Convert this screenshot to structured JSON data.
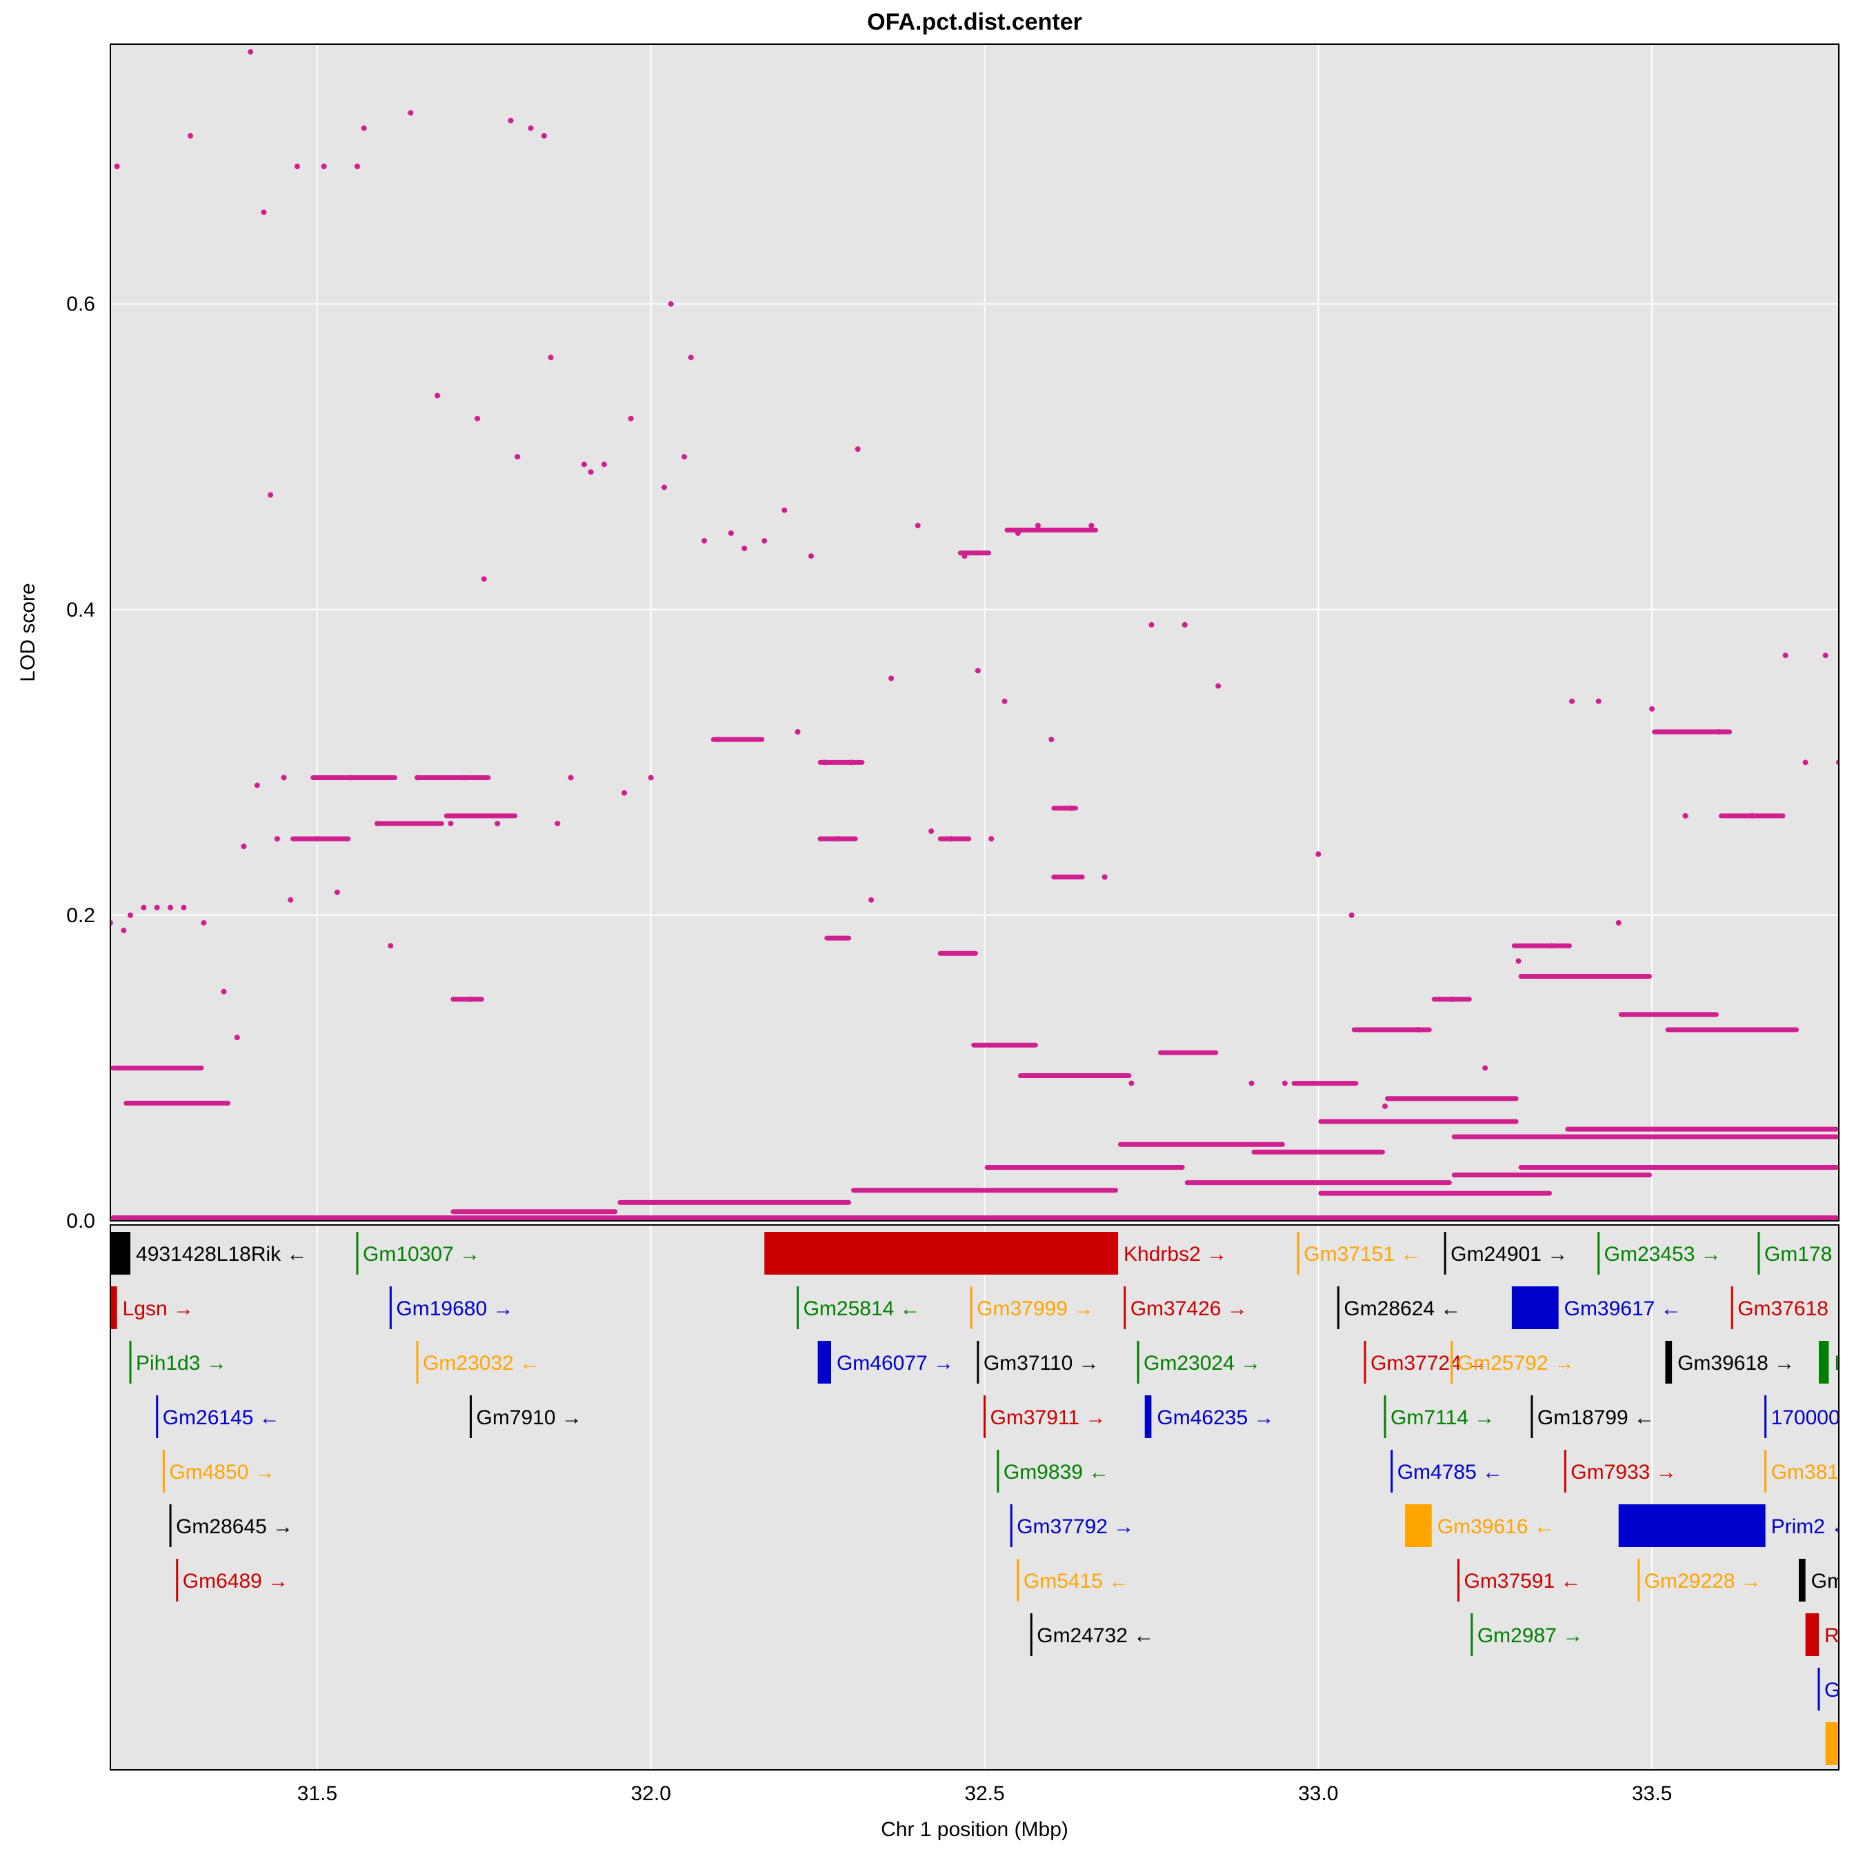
{
  "chart_data": {
    "type": "scatter",
    "title": "OFA.pct.dist.center",
    "xlabel": "Chr 1 position (Mbp)",
    "ylabel": "LOD score",
    "xlim": [
      31.19,
      33.78
    ],
    "ylim": [
      0.0,
      0.77
    ],
    "xticks": [
      "31.5",
      "32.0",
      "32.5",
      "33.0",
      "33.5"
    ],
    "yticks": [
      "0.0",
      "0.2",
      "0.4",
      "0.6"
    ],
    "grid": true,
    "point_color": "#d02090",
    "panel_bg": "#e5e5e5",
    "lod_points": [
      [
        31.19,
        0.195
      ],
      [
        31.2,
        0.69
      ],
      [
        31.21,
        0.19
      ],
      [
        31.22,
        0.2
      ],
      [
        31.24,
        0.205
      ],
      [
        31.26,
        0.205
      ],
      [
        31.28,
        0.205
      ],
      [
        31.3,
        0.205
      ],
      [
        31.33,
        0.195
      ],
      [
        31.31,
        0.71
      ],
      [
        31.36,
        0.15
      ],
      [
        31.38,
        0.12
      ],
      [
        31.39,
        0.245
      ],
      [
        31.4,
        0.765
      ],
      [
        31.41,
        0.285
      ],
      [
        31.42,
        0.66
      ],
      [
        31.43,
        0.475
      ],
      [
        31.44,
        0.25
      ],
      [
        31.45,
        0.29
      ],
      [
        31.46,
        0.21
      ],
      [
        31.47,
        0.69
      ],
      [
        31.5,
        0.25
      ],
      [
        31.51,
        0.69
      ],
      [
        31.53,
        0.215
      ],
      [
        31.55,
        0.29
      ],
      [
        31.56,
        0.69
      ],
      [
        31.57,
        0.715
      ],
      [
        31.59,
        0.26
      ],
      [
        31.61,
        0.18
      ],
      [
        31.64,
        0.725
      ],
      [
        31.65,
        0.29
      ],
      [
        31.68,
        0.54
      ],
      [
        31.7,
        0.26
      ],
      [
        31.72,
        0.29
      ],
      [
        31.73,
        0.145
      ],
      [
        31.74,
        0.525
      ],
      [
        31.75,
        0.42
      ],
      [
        31.77,
        0.26
      ],
      [
        31.79,
        0.72
      ],
      [
        31.8,
        0.5
      ],
      [
        31.82,
        0.715
      ],
      [
        31.84,
        0.71
      ],
      [
        31.85,
        0.565
      ],
      [
        31.86,
        0.26
      ],
      [
        31.88,
        0.29
      ],
      [
        31.9,
        0.495
      ],
      [
        31.91,
        0.49
      ],
      [
        31.93,
        0.495
      ],
      [
        31.96,
        0.28
      ],
      [
        31.97,
        0.525
      ],
      [
        32.0,
        0.29
      ],
      [
        32.02,
        0.48
      ],
      [
        32.03,
        0.6
      ],
      [
        32.05,
        0.5
      ],
      [
        32.06,
        0.565
      ],
      [
        32.08,
        0.445
      ],
      [
        32.1,
        0.315
      ],
      [
        32.12,
        0.45
      ],
      [
        32.14,
        0.44
      ],
      [
        32.17,
        0.445
      ],
      [
        32.2,
        0.465
      ],
      [
        32.22,
        0.32
      ],
      [
        32.24,
        0.435
      ],
      [
        32.26,
        0.3
      ],
      [
        32.28,
        0.25
      ],
      [
        32.3,
        0.3
      ],
      [
        32.31,
        0.505
      ],
      [
        32.33,
        0.21
      ],
      [
        32.36,
        0.355
      ],
      [
        32.4,
        0.455
      ],
      [
        32.42,
        0.255
      ],
      [
        32.45,
        0.25
      ],
      [
        32.47,
        0.435
      ],
      [
        32.49,
        0.36
      ],
      [
        32.51,
        0.25
      ],
      [
        32.53,
        0.34
      ],
      [
        32.55,
        0.45
      ],
      [
        32.58,
        0.455
      ],
      [
        32.6,
        0.315
      ],
      [
        32.63,
        0.27
      ],
      [
        32.66,
        0.455
      ],
      [
        32.68,
        0.225
      ],
      [
        32.72,
        0.09
      ],
      [
        32.75,
        0.39
      ],
      [
        32.8,
        0.39
      ],
      [
        32.85,
        0.35
      ],
      [
        32.9,
        0.09
      ],
      [
        32.95,
        0.09
      ],
      [
        33.0,
        0.24
      ],
      [
        33.05,
        0.2
      ],
      [
        33.1,
        0.075
      ],
      [
        33.15,
        0.125
      ],
      [
        33.2,
        0.145
      ],
      [
        33.25,
        0.1
      ],
      [
        33.3,
        0.17
      ],
      [
        33.35,
        0.18
      ],
      [
        33.38,
        0.34
      ],
      [
        33.42,
        0.34
      ],
      [
        33.45,
        0.195
      ],
      [
        33.5,
        0.335
      ],
      [
        33.55,
        0.265
      ],
      [
        33.6,
        0.32
      ],
      [
        33.65,
        0.265
      ],
      [
        33.7,
        0.37
      ],
      [
        33.73,
        0.3
      ],
      [
        33.76,
        0.37
      ],
      [
        33.78,
        0.3
      ]
    ],
    "lod_bands": [
      {
        "x1": 31.19,
        "x2": 31.33,
        "y": 0.1
      },
      {
        "x1": 31.21,
        "x2": 31.37,
        "y": 0.077
      },
      {
        "x1": 31.46,
        "x2": 31.55,
        "y": 0.25
      },
      {
        "x1": 31.49,
        "x2": 31.62,
        "y": 0.29
      },
      {
        "x1": 31.59,
        "x2": 31.69,
        "y": 0.26
      },
      {
        "x1": 31.65,
        "x2": 31.76,
        "y": 0.29
      },
      {
        "x1": 31.69,
        "x2": 31.8,
        "y": 0.265
      },
      {
        "x1": 31.7,
        "x2": 31.75,
        "y": 0.145
      },
      {
        "x1": 32.09,
        "x2": 32.17,
        "y": 0.315
      },
      {
        "x1": 32.25,
        "x2": 32.32,
        "y": 0.3
      },
      {
        "x1": 32.25,
        "x2": 32.31,
        "y": 0.25
      },
      {
        "x1": 32.26,
        "x2": 32.3,
        "y": 0.185
      },
      {
        "x1": 32.43,
        "x2": 32.48,
        "y": 0.25
      },
      {
        "x1": 32.43,
        "x2": 32.49,
        "y": 0.175
      },
      {
        "x1": 32.46,
        "x2": 32.51,
        "y": 0.437
      },
      {
        "x1": 32.53,
        "x2": 32.67,
        "y": 0.452
      },
      {
        "x1": 32.6,
        "x2": 32.65,
        "y": 0.225
      },
      {
        "x1": 32.6,
        "x2": 32.64,
        "y": 0.27
      },
      {
        "x1": 32.48,
        "x2": 32.58,
        "y": 0.115
      },
      {
        "x1": 32.55,
        "x2": 32.72,
        "y": 0.095
      },
      {
        "x1": 32.76,
        "x2": 32.85,
        "y": 0.11
      },
      {
        "x1": 32.96,
        "x2": 33.06,
        "y": 0.09
      },
      {
        "x1": 33.05,
        "x2": 33.17,
        "y": 0.125
      },
      {
        "x1": 33.17,
        "x2": 33.23,
        "y": 0.145
      },
      {
        "x1": 33.29,
        "x2": 33.38,
        "y": 0.18
      },
      {
        "x1": 33.2,
        "x2": 33.78,
        "y": 0.055
      },
      {
        "x1": 33.37,
        "x2": 33.78,
        "y": 0.06
      },
      {
        "x1": 33.3,
        "x2": 33.78,
        "y": 0.035
      },
      {
        "x1": 33.5,
        "x2": 33.62,
        "y": 0.32
      },
      {
        "x1": 33.6,
        "x2": 33.7,
        "y": 0.265
      },
      {
        "x1": 33.3,
        "x2": 33.5,
        "y": 0.16
      },
      {
        "x1": 33.45,
        "x2": 33.6,
        "y": 0.135
      },
      {
        "x1": 33.52,
        "x2": 33.72,
        "y": 0.125
      },
      {
        "x1": 31.19,
        "x2": 33.78,
        "y": 0.002
      },
      {
        "x1": 31.7,
        "x2": 31.95,
        "y": 0.006
      },
      {
        "x1": 31.95,
        "x2": 32.3,
        "y": 0.012
      },
      {
        "x1": 32.3,
        "x2": 32.7,
        "y": 0.02
      },
      {
        "x1": 32.5,
        "x2": 32.8,
        "y": 0.035
      },
      {
        "x1": 32.8,
        "x2": 33.2,
        "y": 0.025
      },
      {
        "x1": 33.0,
        "x2": 33.35,
        "y": 0.018
      },
      {
        "x1": 33.2,
        "x2": 33.5,
        "y": 0.03
      },
      {
        "x1": 33.0,
        "x2": 33.3,
        "y": 0.065
      },
      {
        "x1": 32.9,
        "x2": 33.1,
        "y": 0.045
      },
      {
        "x1": 33.1,
        "x2": 33.3,
        "y": 0.08
      },
      {
        "x1": 32.7,
        "x2": 32.95,
        "y": 0.05
      }
    ],
    "genes": [
      {
        "label": "4931428L18Rik ←",
        "start": 31.19,
        "end": 31.22,
        "row": 0,
        "color": "#000000"
      },
      {
        "label": "Gm10307 →",
        "start": 31.56,
        "end": 31.56,
        "row": 0,
        "color": "#008000"
      },
      {
        "label": "Khdrbs2 →",
        "start": 32.17,
        "end": 32.7,
        "row": 0,
        "color": "#cc0000"
      },
      {
        "label": "Gm37151 ←",
        "start": 32.97,
        "end": 32.97,
        "row": 0,
        "color": "#ffa500"
      },
      {
        "label": "Gm24901 →",
        "start": 33.19,
        "end": 33.19,
        "row": 0,
        "color": "#000000"
      },
      {
        "label": "Gm23453 →",
        "start": 33.42,
        "end": 33.42,
        "row": 0,
        "color": "#008000"
      },
      {
        "label": "Gm178",
        "start": 33.66,
        "end": 33.66,
        "row": 0,
        "color": "#008000"
      },
      {
        "label": "Lgsn →",
        "start": 31.19,
        "end": 31.2,
        "row": 1,
        "color": "#cc0000"
      },
      {
        "label": "Gm19680 →",
        "start": 31.61,
        "end": 31.61,
        "row": 1,
        "color": "#0000cc"
      },
      {
        "label": "Gm25814 ←",
        "start": 32.22,
        "end": 32.22,
        "row": 1,
        "color": "#008000"
      },
      {
        "label": "Gm37999 →",
        "start": 32.48,
        "end": 32.48,
        "row": 1,
        "color": "#ffa500"
      },
      {
        "label": "Gm37426 →",
        "start": 32.71,
        "end": 32.71,
        "row": 1,
        "color": "#cc0000"
      },
      {
        "label": "Gm28624 ←",
        "start": 33.03,
        "end": 33.03,
        "row": 1,
        "color": "#000000"
      },
      {
        "label": "Gm39617 ←",
        "start": 33.29,
        "end": 33.36,
        "row": 1,
        "color": "#0000cc"
      },
      {
        "label": "Gm37618",
        "start": 33.62,
        "end": 33.62,
        "row": 1,
        "color": "#cc0000"
      },
      {
        "label": "Pih1d3 →",
        "start": 31.22,
        "end": 31.22,
        "row": 2,
        "color": "#008000"
      },
      {
        "label": "Gm23032 ←",
        "start": 31.65,
        "end": 31.65,
        "row": 2,
        "color": "#ffa500"
      },
      {
        "label": "Gm46077 →",
        "start": 32.25,
        "end": 32.27,
        "row": 2,
        "color": "#0000cc"
      },
      {
        "label": "Gm37110 →",
        "start": 32.49,
        "end": 32.49,
        "row": 2,
        "color": "#000000"
      },
      {
        "label": "Gm23024 →",
        "start": 32.73,
        "end": 32.73,
        "row": 2,
        "color": "#008000"
      },
      {
        "label": "Gm37724 →",
        "start": 33.07,
        "end": 33.07,
        "row": 2,
        "color": "#cc0000"
      },
      {
        "label": "Gm25792 →",
        "start": 33.2,
        "end": 33.2,
        "row": 2,
        "color": "#ffa500"
      },
      {
        "label": "Gm39618 →",
        "start": 33.52,
        "end": 33.53,
        "row": 2,
        "color": "#000000"
      },
      {
        "label": "E",
        "start": 33.75,
        "end": 33.765,
        "row": 2,
        "color": "#008000"
      },
      {
        "label": "Gm26145 ←",
        "start": 31.26,
        "end": 31.26,
        "row": 3,
        "color": "#0000cc"
      },
      {
        "label": "Gm7910 →",
        "start": 31.73,
        "end": 31.73,
        "row": 3,
        "color": "#000000"
      },
      {
        "label": "Gm37911 →",
        "start": 32.5,
        "end": 32.5,
        "row": 3,
        "color": "#cc0000"
      },
      {
        "label": "Gm46235 →",
        "start": 32.74,
        "end": 32.75,
        "row": 3,
        "color": "#0000cc"
      },
      {
        "label": "Gm7114 →",
        "start": 33.1,
        "end": 33.1,
        "row": 3,
        "color": "#008000"
      },
      {
        "label": "Gm18799 ←",
        "start": 33.32,
        "end": 33.32,
        "row": 3,
        "color": "#000000"
      },
      {
        "label": "170000",
        "start": 33.67,
        "end": 33.67,
        "row": 3,
        "color": "#0000cc"
      },
      {
        "label": "Gm4850 →",
        "start": 31.27,
        "end": 31.27,
        "row": 4,
        "color": "#ffa500"
      },
      {
        "label": "Gm9839 ←",
        "start": 32.52,
        "end": 32.52,
        "row": 4,
        "color": "#008000"
      },
      {
        "label": "Gm4785 ←",
        "start": 33.11,
        "end": 33.11,
        "row": 4,
        "color": "#0000cc"
      },
      {
        "label": "Gm7933 →",
        "start": 33.37,
        "end": 33.37,
        "row": 4,
        "color": "#cc0000"
      },
      {
        "label": "Gm381",
        "start": 33.67,
        "end": 33.67,
        "row": 4,
        "color": "#ffa500"
      },
      {
        "label": "Gm28645 →",
        "start": 31.28,
        "end": 31.28,
        "row": 5,
        "color": "#000000"
      },
      {
        "label": "Gm37792 →",
        "start": 32.54,
        "end": 32.54,
        "row": 5,
        "color": "#0000cc"
      },
      {
        "label": "Gm39616 ←",
        "start": 33.13,
        "end": 33.17,
        "row": 5,
        "color": "#ffa500"
      },
      {
        "label": "Prim2 ←",
        "start": 33.45,
        "end": 33.67,
        "row": 5,
        "color": "#0000cc"
      },
      {
        "label": "Gm6489 →",
        "start": 31.29,
        "end": 31.29,
        "row": 6,
        "color": "#cc0000"
      },
      {
        "label": "Gm5415 ←",
        "start": 32.55,
        "end": 32.55,
        "row": 6,
        "color": "#ffa500"
      },
      {
        "label": "Gm37591 ←",
        "start": 33.21,
        "end": 33.21,
        "row": 6,
        "color": "#cc0000"
      },
      {
        "label": "Gm29228 →",
        "start": 33.48,
        "end": 33.48,
        "row": 6,
        "color": "#ffa500"
      },
      {
        "label": "Gm",
        "start": 33.72,
        "end": 33.73,
        "row": 6,
        "color": "#000000"
      },
      {
        "label": "Gm24732 ←",
        "start": 32.57,
        "end": 32.57,
        "row": 7,
        "color": "#000000"
      },
      {
        "label": "Gm2987 →",
        "start": 33.23,
        "end": 33.23,
        "row": 7,
        "color": "#008000"
      },
      {
        "label": "Ra",
        "start": 33.73,
        "end": 33.75,
        "row": 7,
        "color": "#cc0000"
      },
      {
        "label": "G",
        "start": 33.75,
        "end": 33.75,
        "row": 8,
        "color": "#0000cc"
      },
      {
        "label": "",
        "start": 33.76,
        "end": 33.78,
        "row": 9,
        "color": "#ffa500"
      }
    ]
  }
}
